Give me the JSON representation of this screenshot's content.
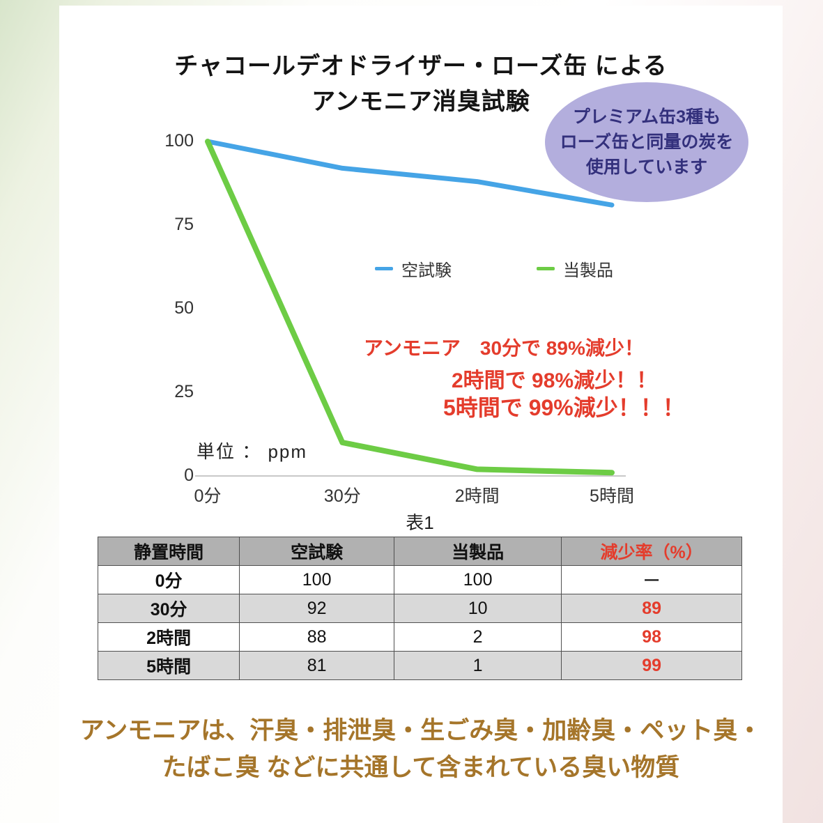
{
  "title": {
    "line1": "チャコールデオドライザー・ローズ缶 による",
    "line2": "アンモニア消臭試験"
  },
  "badge": {
    "lines": [
      "プレミアム缶3種も",
      "ローズ缶と同量の炭を",
      "使用しています"
    ]
  },
  "chart_data": {
    "type": "line",
    "title": "チャコールデオドライザー・ローズ缶 による アンモニア消臭試験",
    "x": [
      "0分",
      "30分",
      "2時間",
      "5時間"
    ],
    "series": [
      {
        "name": "空試験",
        "color": "#45a4e6",
        "values": [
          100,
          92,
          88,
          81
        ]
      },
      {
        "name": "当製品",
        "color": "#6dcc45",
        "values": [
          100,
          10,
          2,
          1
        ]
      }
    ],
    "unit_label": "単位 ： ppm",
    "yticks": [
      0,
      25,
      50,
      75,
      100
    ],
    "ylim": [
      0,
      100
    ],
    "grid": false,
    "legend_position": "center"
  },
  "annotations": {
    "line1": "アンモニア　30分で 89%減少！",
    "line2": "2時間で 98%減少！！",
    "line3": "5時間で 99%減少！！！"
  },
  "table": {
    "caption": "表1",
    "headers": [
      "静置時間",
      "空試験",
      "当製品",
      "減少率（%）"
    ],
    "rows": [
      [
        "0分",
        "100",
        "100",
        "ー"
      ],
      [
        "30分",
        "92",
        "10",
        "89"
      ],
      [
        "2時間",
        "88",
        "2",
        "98"
      ],
      [
        "5時間",
        "81",
        "1",
        "99"
      ]
    ]
  },
  "footer": {
    "line1": "アンモニアは、汗臭・排泄臭・生ごみ臭・加齢臭・ペット臭・",
    "line2": "たばこ臭 などに共通して含まれている臭い物質"
  },
  "colors": {
    "accent_red": "#e43c2c",
    "footer_brown": "#a5752a",
    "badge_bg": "#b3aedd",
    "badge_text": "#33307c",
    "table_header_bg": "#b1b1b1",
    "blank_test_blue": "#45a4e6",
    "product_green": "#6dcc45"
  }
}
